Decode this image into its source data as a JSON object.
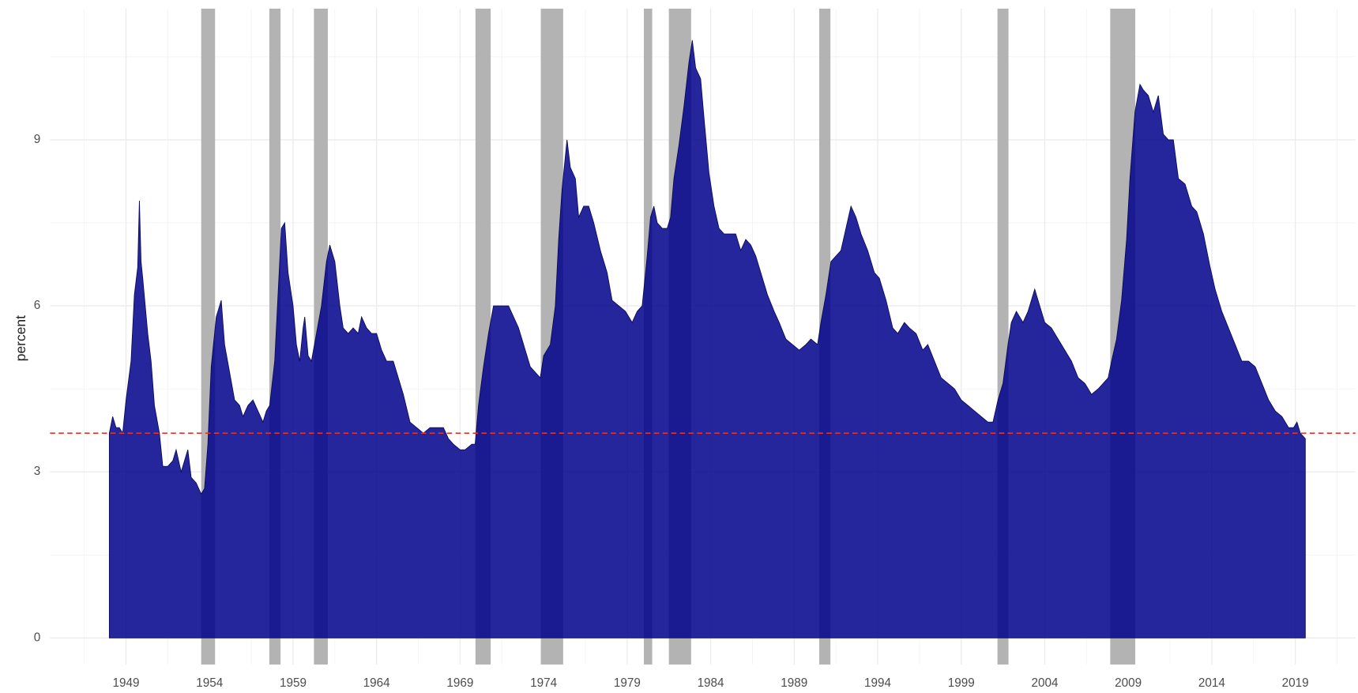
{
  "chart_data": {
    "type": "area",
    "y_label": "percent",
    "grid": true,
    "color": "#00008b",
    "line_color": "#0a0a5a",
    "recession_color": "#b3b3b3",
    "hline_color": "#e8312a",
    "hline": 3.7,
    "recessions": [
      [
        1953.5,
        1954.33
      ],
      [
        1957.58,
        1958.25
      ],
      [
        1960.25,
        1961.08
      ],
      [
        1969.92,
        1970.83
      ],
      [
        1973.83,
        1975.17
      ],
      [
        1980.0,
        1980.5
      ],
      [
        1981.5,
        1982.83
      ],
      [
        1990.5,
        1991.17
      ],
      [
        2001.17,
        2001.83
      ],
      [
        2007.92,
        2009.42
      ]
    ],
    "xlim": [
      1944.45,
      2022.6
    ],
    "xticks": [
      1949,
      1954,
      1959,
      1964,
      1969,
      1974,
      1979,
      1984,
      1989,
      1994,
      1999,
      2004,
      2009,
      2014,
      2019
    ],
    "ylim": [
      -0.48,
      11.37
    ],
    "yticks": [
      0,
      3,
      6,
      9
    ],
    "x": [
      1948.0,
      1948.2,
      1948.4,
      1948.6,
      1948.8,
      1949.0,
      1949.3,
      1949.5,
      1949.7,
      1949.8,
      1949.9,
      1950.0,
      1950.3,
      1950.5,
      1950.7,
      1951.0,
      1951.2,
      1951.5,
      1951.8,
      1952.0,
      1952.3,
      1952.5,
      1952.7,
      1952.9,
      1953.2,
      1953.5,
      1953.7,
      1953.9,
      1954.1,
      1954.4,
      1954.6,
      1954.7,
      1954.9,
      1955.2,
      1955.5,
      1955.8,
      1956.0,
      1956.3,
      1956.6,
      1956.9,
      1957.2,
      1957.4,
      1957.6,
      1957.9,
      1958.1,
      1958.3,
      1958.5,
      1958.7,
      1959.0,
      1959.2,
      1959.4,
      1959.6,
      1959.7,
      1959.9,
      1960.1,
      1960.4,
      1960.7,
      1961.0,
      1961.2,
      1961.5,
      1961.8,
      1962.0,
      1962.3,
      1962.6,
      1962.9,
      1963.1,
      1963.4,
      1963.7,
      1964.0,
      1964.3,
      1964.6,
      1965.0,
      1965.3,
      1965.6,
      1966.0,
      1966.4,
      1966.8,
      1967.2,
      1967.6,
      1968.0,
      1968.3,
      1968.6,
      1969.0,
      1969.3,
      1969.7,
      1969.9,
      1970.1,
      1970.4,
      1970.7,
      1971.0,
      1971.3,
      1971.6,
      1971.9,
      1972.2,
      1972.5,
      1972.9,
      1973.2,
      1973.5,
      1973.8,
      1974.0,
      1974.4,
      1974.7,
      1974.9,
      1975.1,
      1975.4,
      1975.6,
      1975.9,
      1976.1,
      1976.4,
      1976.7,
      1977.0,
      1977.4,
      1977.8,
      1978.1,
      1978.5,
      1978.9,
      1979.3,
      1979.6,
      1979.9,
      1980.2,
      1980.4,
      1980.6,
      1980.8,
      1981.1,
      1981.4,
      1981.6,
      1981.8,
      1982.1,
      1982.4,
      1982.7,
      1982.9,
      1983.1,
      1983.4,
      1983.6,
      1983.9,
      1984.2,
      1984.5,
      1984.8,
      1985.2,
      1985.5,
      1985.8,
      1986.1,
      1986.4,
      1986.7,
      1987.0,
      1987.4,
      1987.8,
      1988.1,
      1988.5,
      1988.9,
      1989.3,
      1989.7,
      1990.0,
      1990.4,
      1990.6,
      1990.9,
      1991.2,
      1991.5,
      1991.8,
      1992.1,
      1992.4,
      1992.7,
      1993.0,
      1993.4,
      1993.8,
      1994.1,
      1994.5,
      1994.9,
      1995.2,
      1995.6,
      1995.9,
      1996.3,
      1996.7,
      1997.0,
      1997.4,
      1997.8,
      1998.2,
      1998.6,
      1999.0,
      1999.4,
      1999.8,
      2000.2,
      2000.6,
      2000.9,
      2001.2,
      2001.5,
      2001.8,
      2002.0,
      2002.3,
      2002.7,
      2003.0,
      2003.4,
      2003.7,
      2004.0,
      2004.4,
      2004.8,
      2005.2,
      2005.6,
      2006.0,
      2006.4,
      2006.8,
      2007.2,
      2007.5,
      2007.8,
      2008.0,
      2008.3,
      2008.6,
      2008.9,
      2009.1,
      2009.4,
      2009.7,
      2009.9,
      2010.2,
      2010.5,
      2010.8,
      2011.1,
      2011.4,
      2011.7,
      2012.0,
      2012.4,
      2012.8,
      2013.1,
      2013.5,
      2013.9,
      2014.2,
      2014.6,
      2015.0,
      2015.4,
      2015.8,
      2016.2,
      2016.6,
      2017.0,
      2017.4,
      2017.8,
      2018.2,
      2018.6,
      2018.9,
      2019.1,
      2019.3,
      2019.6
    ],
    "values": [
      3.7,
      4.0,
      3.8,
      3.8,
      3.7,
      4.3,
      5.0,
      6.2,
      6.7,
      7.9,
      6.8,
      6.5,
      5.5,
      5.0,
      4.2,
      3.7,
      3.1,
      3.1,
      3.2,
      3.4,
      3.0,
      3.2,
      3.4,
      2.9,
      2.8,
      2.6,
      2.7,
      3.5,
      4.9,
      5.8,
      6.0,
      6.1,
      5.3,
      4.8,
      4.3,
      4.2,
      4.0,
      4.2,
      4.3,
      4.1,
      3.9,
      4.1,
      4.2,
      5.0,
      6.2,
      7.4,
      7.5,
      6.6,
      6.0,
      5.3,
      5.0,
      5.6,
      5.8,
      5.1,
      5.0,
      5.5,
      6.0,
      6.8,
      7.1,
      6.8,
      6.0,
      5.6,
      5.5,
      5.6,
      5.5,
      5.8,
      5.6,
      5.5,
      5.5,
      5.2,
      5.0,
      5.0,
      4.7,
      4.4,
      3.9,
      3.8,
      3.7,
      3.8,
      3.8,
      3.8,
      3.6,
      3.5,
      3.4,
      3.4,
      3.5,
      3.5,
      4.2,
      4.9,
      5.5,
      6.0,
      6.0,
      6.0,
      6.0,
      5.8,
      5.6,
      5.2,
      4.9,
      4.8,
      4.7,
      5.1,
      5.3,
      6.0,
      7.2,
      8.1,
      9.0,
      8.5,
      8.3,
      7.6,
      7.8,
      7.8,
      7.5,
      7.0,
      6.6,
      6.1,
      6.0,
      5.9,
      5.7,
      5.9,
      6.0,
      6.9,
      7.6,
      7.8,
      7.5,
      7.4,
      7.4,
      7.6,
      8.3,
      8.9,
      9.6,
      10.4,
      10.8,
      10.3,
      10.1,
      9.4,
      8.4,
      7.8,
      7.4,
      7.3,
      7.3,
      7.3,
      7.0,
      7.2,
      7.1,
      6.9,
      6.6,
      6.2,
      5.9,
      5.7,
      5.4,
      5.3,
      5.2,
      5.3,
      5.4,
      5.3,
      5.7,
      6.2,
      6.8,
      6.9,
      7.0,
      7.4,
      7.8,
      7.6,
      7.3,
      7.0,
      6.6,
      6.5,
      6.1,
      5.6,
      5.5,
      5.7,
      5.6,
      5.5,
      5.2,
      5.3,
      5.0,
      4.7,
      4.6,
      4.5,
      4.3,
      4.2,
      4.1,
      4.0,
      3.9,
      3.9,
      4.3,
      4.6,
      5.3,
      5.7,
      5.9,
      5.7,
      5.9,
      6.3,
      6.0,
      5.7,
      5.6,
      5.4,
      5.2,
      5.0,
      4.7,
      4.6,
      4.4,
      4.5,
      4.6,
      4.7,
      5.0,
      5.4,
      6.1,
      7.2,
      8.3,
      9.5,
      10.0,
      9.9,
      9.8,
      9.5,
      9.8,
      9.1,
      9.0,
      9.0,
      8.3,
      8.2,
      7.8,
      7.7,
      7.3,
      6.7,
      6.3,
      5.9,
      5.6,
      5.3,
      5.0,
      5.0,
      4.9,
      4.6,
      4.3,
      4.1,
      4.0,
      3.8,
      3.8,
      3.9,
      3.7,
      3.6
    ]
  }
}
